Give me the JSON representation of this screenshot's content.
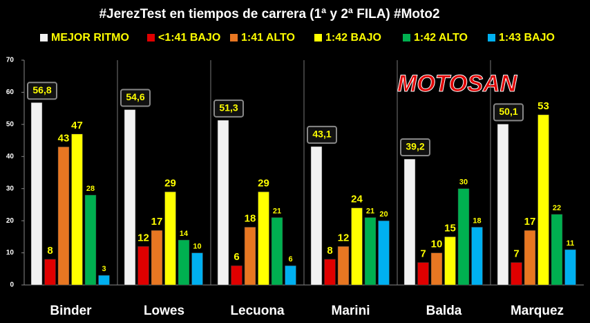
{
  "chart_data": {
    "type": "bar",
    "title": "#JerezTest en tiempos de carrera (1ª y 2ª FILA) #Moto2",
    "logo_text": "MOTOSAN",
    "categories": [
      "Binder",
      "Lowes",
      "Lecuona",
      "Marini",
      "Balda",
      "Marquez"
    ],
    "series": [
      {
        "name": "MEJOR RITMO",
        "color": "#f2f2f2",
        "values": [
          56.8,
          54.6,
          51.3,
          43.1,
          39.2,
          50.1
        ],
        "value_labels": [
          "56,8",
          "54,6",
          "51,3",
          "43,1",
          "39,2",
          "50,1"
        ]
      },
      {
        "name": "<1:41 BAJO",
        "color": "#e00000",
        "values": [
          8,
          12,
          6,
          8,
          7,
          7
        ]
      },
      {
        "name": "1:41 ALTO",
        "color": "#e87722",
        "values": [
          43,
          17,
          18,
          12,
          10,
          17
        ]
      },
      {
        "name": "1:42 BAJO",
        "color": "#ffff00",
        "values": [
          47,
          29,
          29,
          24,
          15,
          53
        ]
      },
      {
        "name": "1:42 ALTO",
        "color": "#00b050",
        "values": [
          28,
          14,
          21,
          21,
          30,
          22
        ]
      },
      {
        "name": "1:43 BAJO",
        "color": "#00b0f0",
        "values": [
          3,
          10,
          6,
          20,
          18,
          11
        ]
      }
    ],
    "ylim": [
      0,
      70
    ],
    "yticks": [
      0,
      10,
      20,
      30,
      40,
      50,
      60,
      70
    ],
    "grid": true
  }
}
